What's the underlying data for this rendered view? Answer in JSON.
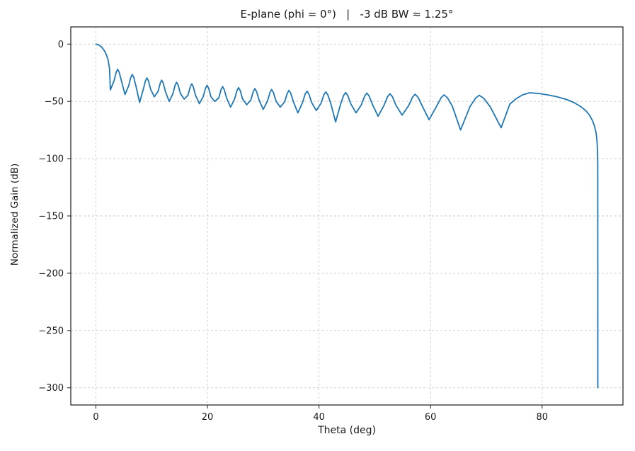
{
  "figure": {
    "background": "#ffffff",
    "frame_color": "#1a1a1a",
    "grid_color": "#c9c9c9"
  },
  "chart_data": {
    "type": "line",
    "title": "E-plane (phi = 0°)   |   -3 dB BW ≈ 1.25°",
    "xlabel": "Theta (deg)",
    "ylabel": "Normalized Gain (dB)",
    "xlim": [
      -4.5,
      94.5
    ],
    "ylim": [
      -315,
      15
    ],
    "xticks": [
      0,
      20,
      40,
      60,
      80
    ],
    "xtick_labels": [
      "0",
      "20",
      "40",
      "60",
      "80"
    ],
    "yticks": [
      0,
      -50,
      -100,
      -150,
      -200,
      -250,
      -300
    ],
    "ytick_labels": [
      "0",
      "−50",
      "−100",
      "−150",
      "−200",
      "−250",
      "−300"
    ],
    "grid": true,
    "grid_style": "dashed",
    "legend": null,
    "line": {
      "name": "E-plane normalized gain",
      "color": "#1f77b4",
      "width": 1.8
    },
    "series": [
      {
        "name": "E-plane gain (dB) vs theta (deg)",
        "points": [
          [
            0,
            0
          ],
          [
            0.5,
            -0.7
          ],
          [
            1.0,
            -2.4
          ],
          [
            1.5,
            -5.6
          ],
          [
            1.9,
            -9.5
          ],
          [
            2.2,
            -14
          ],
          [
            2.45,
            -22
          ],
          [
            2.6,
            -40
          ],
          [
            3.26,
            -32
          ],
          [
            3.65,
            -24.5
          ],
          [
            3.91,
            -22
          ],
          [
            4.17,
            -24.5
          ],
          [
            4.57,
            -32
          ],
          [
            5.22,
            -44
          ],
          [
            5.87,
            -36.5
          ],
          [
            6.26,
            -29
          ],
          [
            6.52,
            -26.5
          ],
          [
            6.78,
            -29
          ],
          [
            7.18,
            -36.5
          ],
          [
            7.84,
            -51
          ],
          [
            8.5,
            -39.5
          ],
          [
            8.89,
            -32
          ],
          [
            9.15,
            -29.5
          ],
          [
            9.42,
            -32
          ],
          [
            9.82,
            -39.5
          ],
          [
            10.48,
            -46
          ],
          [
            11.14,
            -41.5
          ],
          [
            11.54,
            -34
          ],
          [
            11.8,
            -31.5
          ],
          [
            12.07,
            -34
          ],
          [
            12.47,
            -41.5
          ],
          [
            13.14,
            -50
          ],
          [
            13.81,
            -43.3
          ],
          [
            14.21,
            -35.8
          ],
          [
            14.48,
            -33.3
          ],
          [
            14.75,
            -35.8
          ],
          [
            15.16,
            -43.3
          ],
          [
            15.83,
            -48
          ],
          [
            16.51,
            -44.7
          ],
          [
            16.92,
            -37.2
          ],
          [
            17.19,
            -34.7
          ],
          [
            17.46,
            -37.2
          ],
          [
            17.87,
            -44.7
          ],
          [
            18.55,
            -52
          ],
          [
            19.24,
            -46
          ],
          [
            19.65,
            -38.5
          ],
          [
            19.93,
            -36
          ],
          [
            20.21,
            -38.5
          ],
          [
            20.63,
            -46
          ],
          [
            21.32,
            -50
          ],
          [
            22.03,
            -47.1
          ],
          [
            22.45,
            -39.6
          ],
          [
            22.73,
            -37.1
          ],
          [
            23.01,
            -39.6
          ],
          [
            23.44,
            -47.1
          ],
          [
            24.15,
            -55
          ],
          [
            24.87,
            -48
          ],
          [
            25.3,
            -40.5
          ],
          [
            25.58,
            -38
          ],
          [
            25.87,
            -40.5
          ],
          [
            26.31,
            -48
          ],
          [
            27.04,
            -53
          ],
          [
            27.78,
            -48.9
          ],
          [
            28.22,
            -41.4
          ],
          [
            28.51,
            -38.9
          ],
          [
            28.81,
            -41.4
          ],
          [
            29.26,
            -48.9
          ],
          [
            30.0,
            -57
          ],
          [
            30.76,
            -49.7
          ],
          [
            31.21,
            -42.2
          ],
          [
            31.51,
            -39.7
          ],
          [
            31.82,
            -42.2
          ],
          [
            32.29,
            -49.7
          ],
          [
            33.06,
            -55
          ],
          [
            33.84,
            -50.4
          ],
          [
            34.31,
            -42.9
          ],
          [
            34.62,
            -40.4
          ],
          [
            34.94,
            -42.9
          ],
          [
            35.42,
            -50.4
          ],
          [
            36.22,
            -60
          ],
          [
            37.04,
            -51.1
          ],
          [
            37.52,
            -43.6
          ],
          [
            37.85,
            -41.1
          ],
          [
            38.18,
            -43.6
          ],
          [
            38.69,
            -51.1
          ],
          [
            39.52,
            -58
          ],
          [
            40.37,
            -51.7
          ],
          [
            40.88,
            -44.2
          ],
          [
            41.22,
            -41.7
          ],
          [
            41.57,
            -44.2
          ],
          [
            42.1,
            -51.7
          ],
          [
            42.98,
            -68
          ],
          [
            43.88,
            -52.3
          ],
          [
            44.42,
            -44.8
          ],
          [
            44.78,
            -42.3
          ],
          [
            45.15,
            -44.8
          ],
          [
            45.72,
            -52.3
          ],
          [
            46.65,
            -60
          ],
          [
            47.62,
            -52.8
          ],
          [
            48.2,
            -45.3
          ],
          [
            48.59,
            -42.8
          ],
          [
            48.99,
            -45.3
          ],
          [
            49.6,
            -52.8
          ],
          [
            50.6,
            -63
          ],
          [
            51.66,
            -53.4
          ],
          [
            52.3,
            -45.9
          ],
          [
            52.72,
            -43.4
          ],
          [
            53.16,
            -45.9
          ],
          [
            53.81,
            -53.4
          ],
          [
            54.9,
            -62
          ],
          [
            56.07,
            -53.8
          ],
          [
            56.77,
            -46.3
          ],
          [
            57.24,
            -43.8
          ],
          [
            57.74,
            -46.3
          ],
          [
            58.49,
            -53.8
          ],
          [
            59.73,
            -66
          ],
          [
            61.08,
            -54.3
          ],
          [
            61.89,
            -46.8
          ],
          [
            62.43,
            -44.3
          ],
          [
            63.02,
            -46.8
          ],
          [
            63.91,
            -54.3
          ],
          [
            65.38,
            -75
          ],
          [
            67.06,
            -54.7
          ],
          [
            68.06,
            -47.2
          ],
          [
            68.73,
            -44.7
          ],
          [
            69.52,
            -47.2
          ],
          [
            70.7,
            -54.7
          ],
          [
            72.66,
            -73
          ],
          [
            74.2,
            -52.5
          ],
          [
            75.4,
            -47.5
          ],
          [
            76.5,
            -44.3
          ],
          [
            77.76,
            -42.5
          ],
          [
            79.5,
            -43.2
          ],
          [
            81,
            -44.3
          ],
          [
            82.5,
            -45.8
          ],
          [
            84,
            -47.8
          ],
          [
            85,
            -49.5
          ],
          [
            86,
            -51.8
          ],
          [
            87,
            -54.8
          ],
          [
            87.8,
            -58
          ],
          [
            88.5,
            -62
          ],
          [
            89,
            -66.5
          ],
          [
            89.4,
            -71.5
          ],
          [
            89.7,
            -78
          ],
          [
            89.85,
            -85
          ],
          [
            89.93,
            -93
          ],
          [
            89.98,
            -105
          ],
          [
            90,
            -300
          ]
        ]
      }
    ]
  }
}
